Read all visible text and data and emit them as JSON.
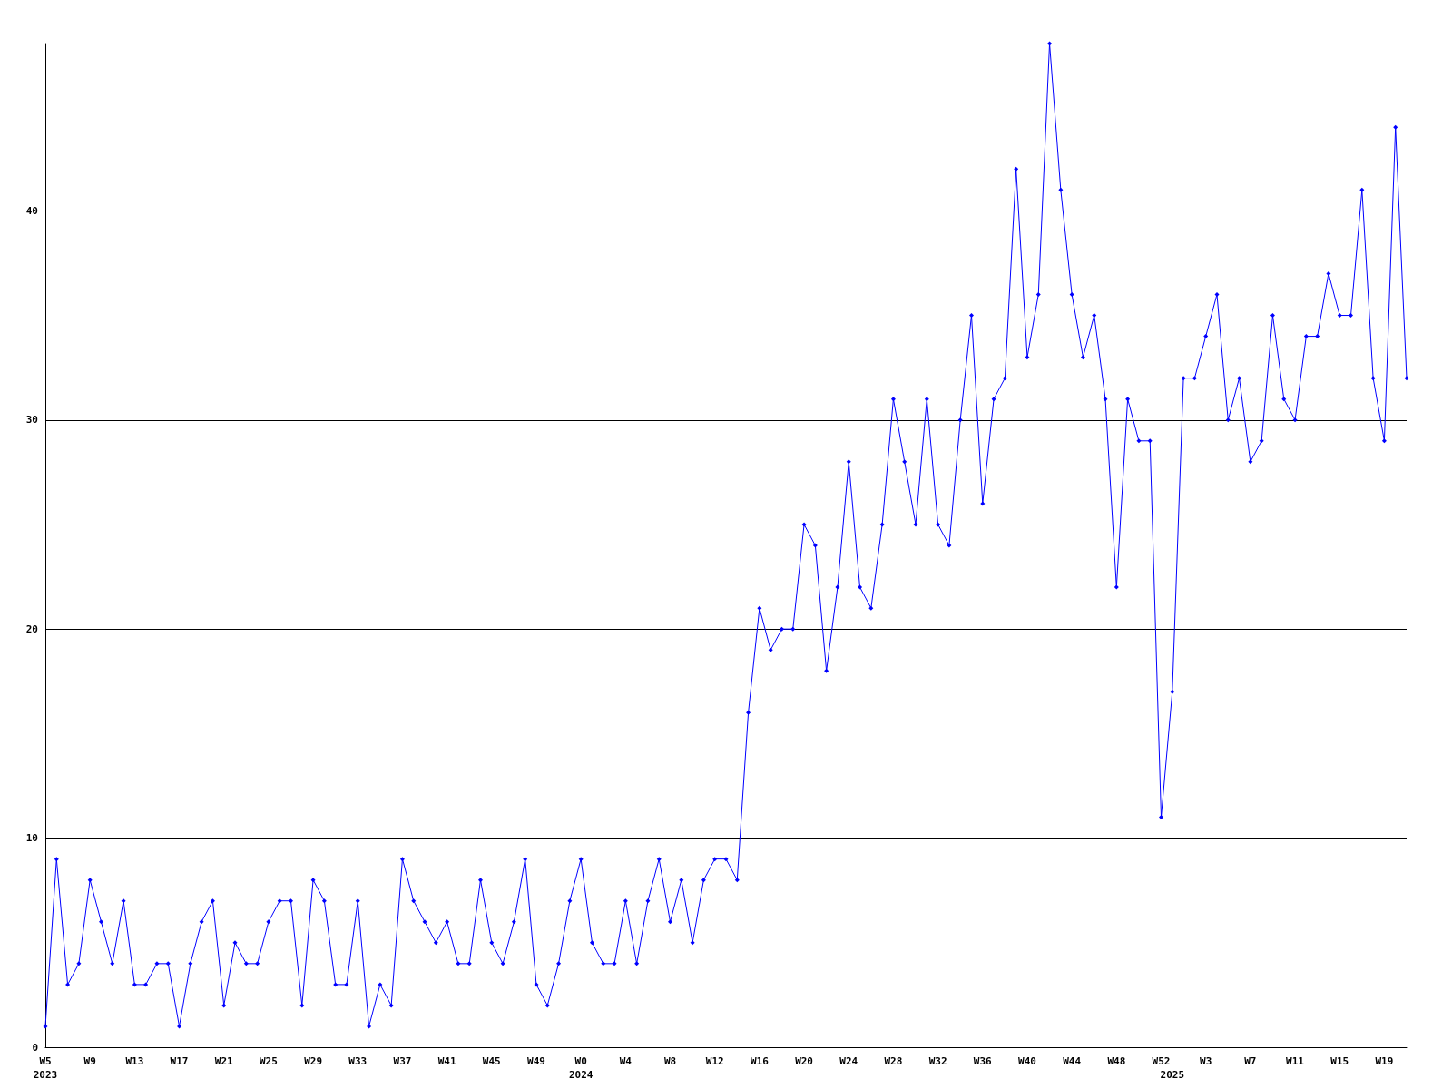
{
  "chart_data": {
    "type": "line",
    "categories": [
      "W5\n2023",
      null,
      null,
      null,
      "W9",
      null,
      null,
      null,
      "W13",
      null,
      null,
      null,
      "W17",
      null,
      null,
      null,
      "W21",
      null,
      null,
      null,
      "W25",
      null,
      null,
      null,
      "W29",
      null,
      null,
      null,
      "W33",
      null,
      null,
      null,
      "W37",
      null,
      null,
      null,
      "W41",
      null,
      null,
      null,
      "W45",
      null,
      null,
      null,
      "W49",
      null,
      null,
      null,
      "W0\n2024",
      null,
      null,
      null,
      "W4",
      null,
      null,
      null,
      "W8",
      null,
      null,
      null,
      "W12",
      null,
      null,
      null,
      "W16",
      null,
      null,
      null,
      "W20",
      null,
      null,
      null,
      "W24",
      null,
      null,
      null,
      "W28",
      null,
      null,
      null,
      "W32",
      null,
      null,
      null,
      "W36",
      null,
      null,
      null,
      "W40",
      null,
      null,
      null,
      "W44",
      null,
      null,
      null,
      "W48",
      null,
      null,
      null,
      "W52",
      "\n2025",
      null,
      null,
      "W3",
      null,
      null,
      null,
      "W7",
      null,
      null,
      null,
      "W11",
      null,
      null,
      null,
      "W15",
      null,
      null,
      null,
      "W19",
      null,
      null
    ],
    "series": [
      {
        "color": "#0000ff",
        "values": [
          1,
          9,
          3,
          4,
          8,
          6,
          4,
          7,
          3,
          3,
          4,
          4,
          1,
          4,
          6,
          7,
          2,
          5,
          4,
          4,
          6,
          7,
          7,
          2,
          8,
          7,
          3,
          3,
          7,
          1,
          3,
          2,
          9,
          7,
          6,
          5,
          6,
          4,
          4,
          8,
          5,
          4,
          6,
          9,
          3,
          2,
          4,
          7,
          9,
          5,
          4,
          4,
          7,
          4,
          7,
          9,
          6,
          8,
          5,
          8,
          9,
          9,
          8,
          16,
          21,
          19,
          20,
          20,
          25,
          24,
          18,
          22,
          28,
          22,
          21,
          25,
          31,
          28,
          25,
          31,
          25,
          24,
          30,
          35,
          26,
          31,
          32,
          42,
          33,
          36,
          48,
          41,
          36,
          33,
          35,
          31,
          22,
          31,
          29,
          29,
          11,
          17,
          32,
          32,
          34,
          36,
          30,
          32,
          28,
          29,
          35,
          31,
          30,
          34,
          34,
          37,
          35,
          35,
          41,
          32,
          29,
          44,
          32
        ]
      }
    ],
    "ylim": [
      0,
      48
    ],
    "yticks": [
      0,
      10,
      20,
      30,
      40
    ],
    "grid": "y",
    "marker": "diamond",
    "line_style": "solid"
  }
}
